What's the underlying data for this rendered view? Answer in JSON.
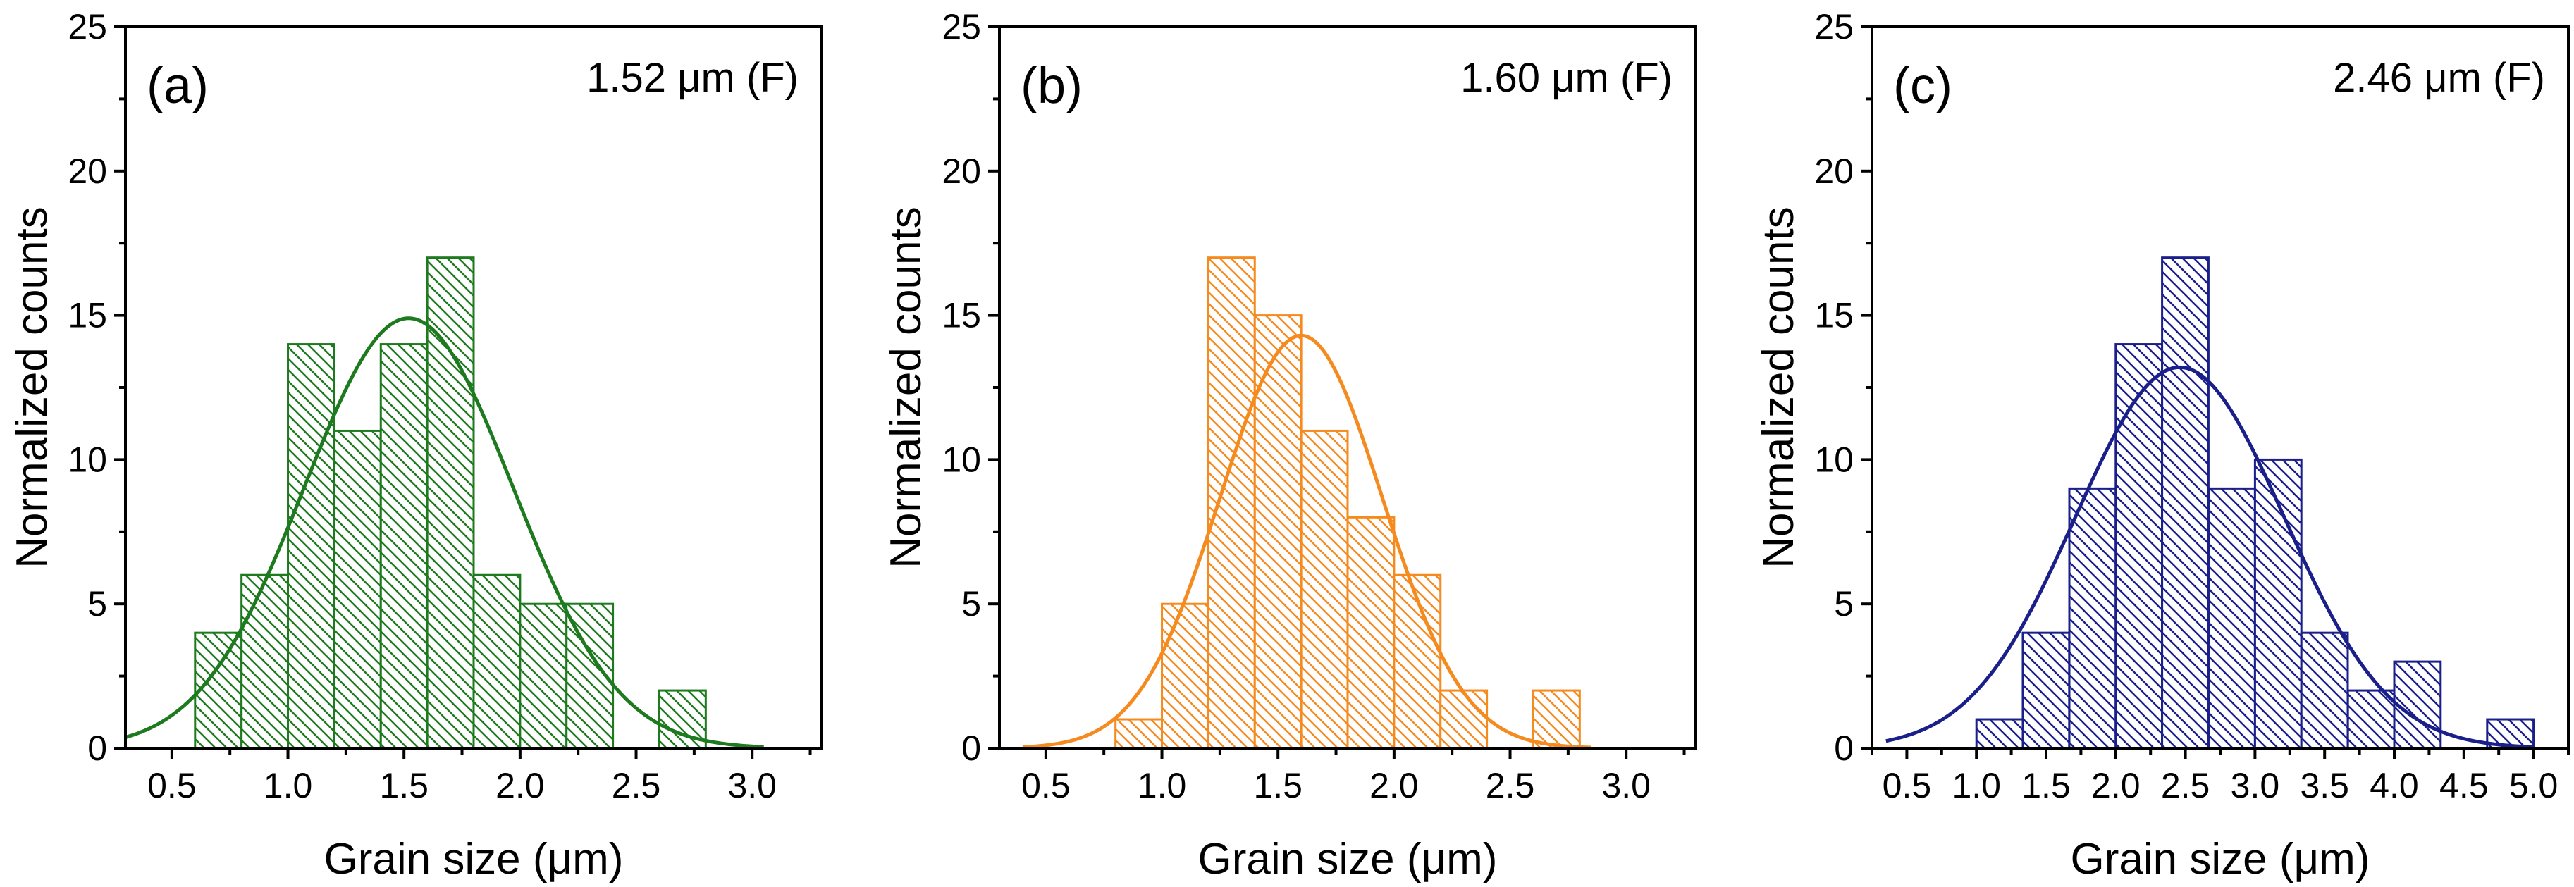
{
  "chart_data": [
    {
      "type": "bar",
      "panel": "(a)",
      "annotation": "1.52 μm (F)",
      "xlabel": "Grain size (μm)",
      "ylabel": "Normalized counts",
      "xlim": [
        0.3,
        3.3
      ],
      "ylim": [
        0,
        25
      ],
      "xticks": [
        "0.5",
        "1.0",
        "1.5",
        "2.0",
        "2.5",
        "3.0"
      ],
      "yticks": [
        "0",
        "5",
        "10",
        "15",
        "20",
        "25"
      ],
      "bin_width": 0.2,
      "bin_starts": [
        0.6,
        0.8,
        1.0,
        1.2,
        1.4,
        1.6,
        1.8,
        2.0,
        2.2,
        2.6
      ],
      "values": [
        4,
        6,
        14,
        11,
        14,
        17,
        6,
        5,
        5,
        2
      ],
      "fit": {
        "type": "gaussian",
        "mean": 1.52,
        "sigma": 0.45,
        "amplitude": 14.9,
        "x_range": [
          0.3,
          3.05
        ]
      },
      "color": "#1e7a1e"
    },
    {
      "type": "bar",
      "panel": "(b)",
      "annotation": "1.60 μm (F)",
      "xlabel": "Grain size (μm)",
      "ylabel": "Normalized counts",
      "xlim": [
        0.3,
        3.3
      ],
      "ylim": [
        0,
        25
      ],
      "xticks": [
        "0.5",
        "1.0",
        "1.5",
        "2.0",
        "2.5",
        "3.0"
      ],
      "yticks": [
        "0",
        "5",
        "10",
        "15",
        "20",
        "25"
      ],
      "bin_width": 0.2,
      "bin_starts": [
        0.8,
        1.0,
        1.2,
        1.4,
        1.6,
        1.8,
        2.0,
        2.2,
        2.6
      ],
      "values": [
        1,
        5,
        17,
        15,
        11,
        8,
        6,
        2,
        2
      ],
      "fit": {
        "type": "gaussian",
        "mean": 1.6,
        "sigma": 0.35,
        "amplitude": 14.3,
        "x_range": [
          0.4,
          2.85
        ]
      },
      "color": "#f58a1f"
    },
    {
      "type": "bar",
      "panel": "(c)",
      "annotation": "2.46 μm (F)",
      "xlabel": "Grain size (μm)",
      "ylabel": "Normalized counts",
      "xlim": [
        0.25,
        5.25
      ],
      "ylim": [
        0,
        25
      ],
      "xticks": [
        "0.5",
        "1.0",
        "1.5",
        "2.0",
        "2.5",
        "3.0",
        "3.5",
        "4.0",
        "4.5",
        "5.0"
      ],
      "yticks": [
        "0",
        "5",
        "10",
        "15",
        "20",
        "25"
      ],
      "bin_width": 0.333,
      "bin_starts": [
        1.0,
        1.333,
        1.667,
        2.0,
        2.333,
        2.667,
        3.0,
        3.333,
        3.667,
        4.0,
        4.667
      ],
      "values": [
        1,
        4,
        9,
        14,
        17,
        9,
        10,
        4,
        2,
        3,
        1
      ],
      "fit": {
        "type": "gaussian",
        "mean": 2.46,
        "sigma": 0.75,
        "amplitude": 13.2,
        "x_range": [
          0.35,
          5.0
        ]
      },
      "color": "#1a1f8a"
    }
  ]
}
